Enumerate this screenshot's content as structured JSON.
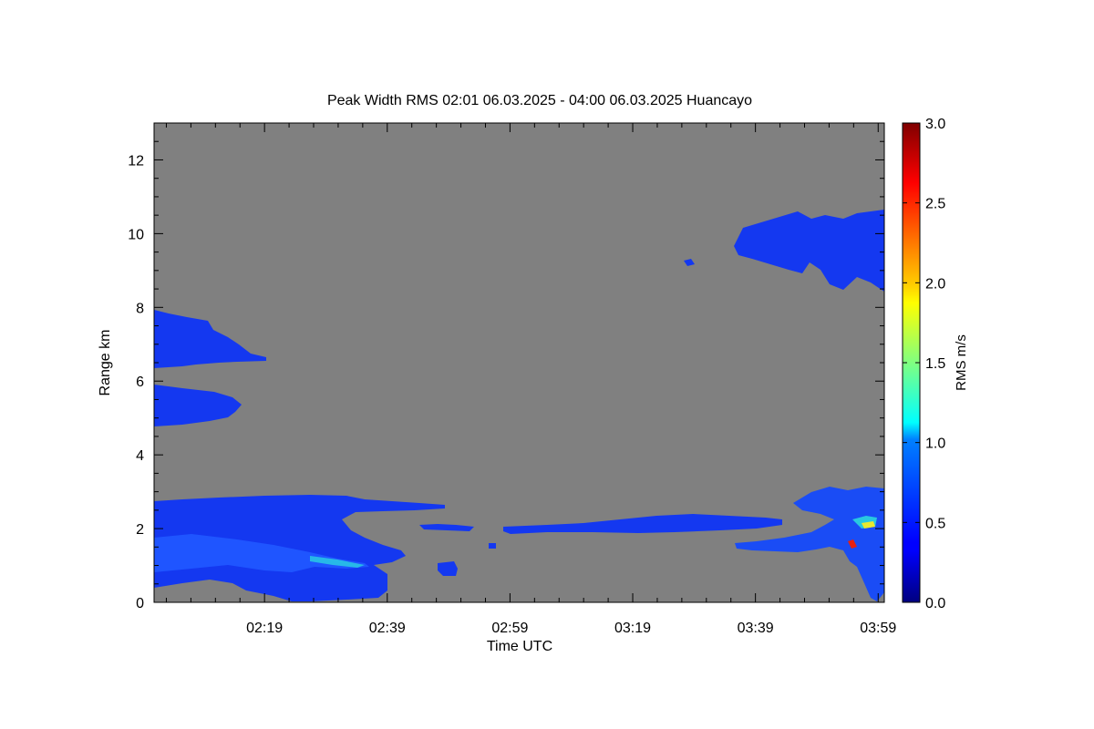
{
  "chart_data": {
    "type": "heatmap",
    "title": "Peak Width RMS   02:01 06.03.2025 - 04:00 06.03.2025 Huancayo",
    "xlabel": "Time UTC",
    "ylabel": "Range km",
    "xlim": [
      "02:01",
      "04:00"
    ],
    "ylim": [
      0,
      13
    ],
    "x_ticks": [
      "02:19",
      "02:39",
      "02:59",
      "03:19",
      "03:39",
      "03:59"
    ],
    "y_ticks": [
      0,
      2,
      4,
      6,
      8,
      10,
      12
    ],
    "background_color": "#808080",
    "colorbar": {
      "label": "RMS m/s",
      "range": [
        0.0,
        3.0
      ],
      "ticks": [
        "0.0",
        "0.5",
        "1.0",
        "1.5",
        "2.0",
        "2.5",
        "3.0"
      ],
      "colormap": "jet"
    },
    "regions": [
      {
        "name": "low-cloud-left",
        "time": [
          "02:01",
          "02:42"
        ],
        "range_km": [
          0.1,
          2.9
        ],
        "rms": 0.35
      },
      {
        "name": "mid-layer-left-upper",
        "time": [
          "02:01",
          "02:19"
        ],
        "range_km": [
          6.4,
          7.9
        ],
        "rms": 0.3
      },
      {
        "name": "mid-layer-left-lower",
        "time": [
          "02:01",
          "02:15"
        ],
        "range_km": [
          4.8,
          5.9
        ],
        "rms": 0.3
      },
      {
        "name": "thin-layer-center",
        "time": [
          "02:46",
          "03:46"
        ],
        "range_km": [
          1.8,
          2.4
        ],
        "rms": 0.3
      },
      {
        "name": "upper-cloud-right",
        "time": [
          "03:38",
          "04:00"
        ],
        "range_km": [
          8.5,
          10.6
        ],
        "rms": 0.3
      },
      {
        "name": "low-cloud-right",
        "time": [
          "03:46",
          "04:00"
        ],
        "range_km": [
          0.0,
          3.3
        ],
        "rms": 0.6
      }
    ]
  }
}
